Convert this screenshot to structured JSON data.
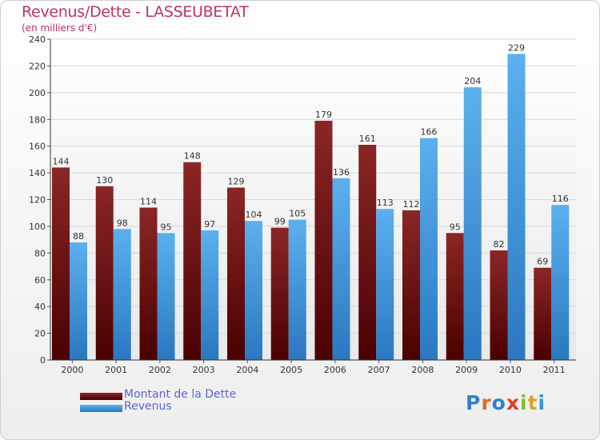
{
  "chart_data": {
    "type": "bar",
    "title": "Revenus/Dette - LASSEUBETAT",
    "subtitle": "(en milliers d'€)",
    "categories": [
      "2000",
      "2001",
      "2002",
      "2003",
      "2004",
      "2005",
      "2006",
      "2007",
      "2008",
      "2009",
      "2010",
      "2011"
    ],
    "series": [
      {
        "name": "Montant de la Dette",
        "color": "#7a1e1e",
        "values": [
          144,
          130,
          114,
          148,
          129,
          99,
          179,
          161,
          112,
          95,
          82,
          69
        ]
      },
      {
        "name": "Revenus",
        "color": "#4a9fe0",
        "values": [
          88,
          98,
          95,
          97,
          104,
          105,
          136,
          113,
          166,
          204,
          229,
          116
        ]
      }
    ],
    "yticks": [
      0,
      20,
      40,
      60,
      80,
      100,
      120,
      140,
      160,
      180,
      200,
      220,
      240
    ],
    "ylim": [
      0,
      240
    ],
    "grid": true,
    "legend": "bottom-left"
  },
  "logo": {
    "letters": [
      {
        "ch": "P",
        "color": "#2f7fd2"
      },
      {
        "ch": "r",
        "color": "#e06a1e"
      },
      {
        "ch": "o",
        "color": "#2f7fd2"
      },
      {
        "ch": "x",
        "color": "#e23a2a"
      },
      {
        "ch": "i",
        "color": "#7cc030"
      },
      {
        "ch": "t",
        "color": "#e0a020"
      },
      {
        "ch": "i",
        "color": "#2f9ad8"
      }
    ]
  }
}
